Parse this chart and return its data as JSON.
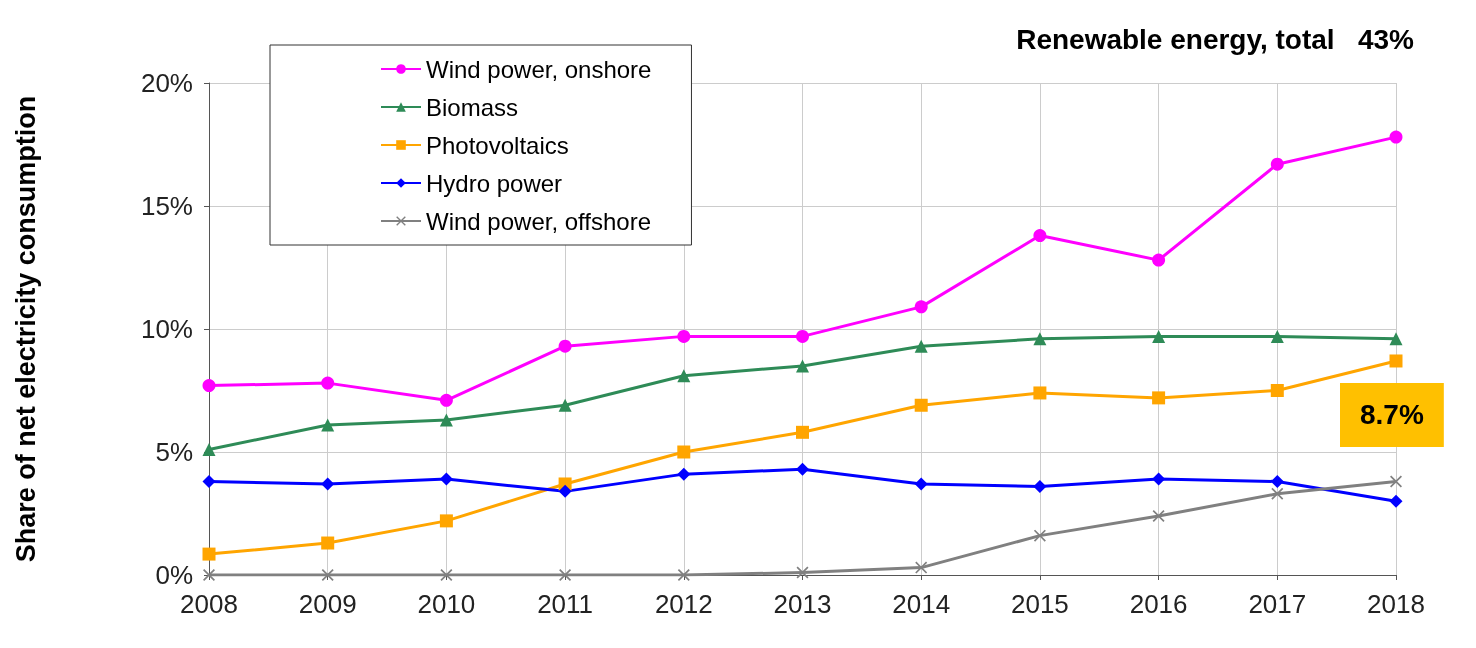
{
  "chart_data": {
    "type": "line",
    "ylabel": "Share of net electricity consumption",
    "categories": [
      "2008",
      "2009",
      "2010",
      "2011",
      "2012",
      "2013",
      "2014",
      "2015",
      "2016",
      "2017",
      "2018"
    ],
    "series": [
      {
        "name": "Wind power, onshore",
        "color": "#ff00ff",
        "marker": "circle",
        "values": [
          7.7,
          7.8,
          7.1,
          9.3,
          9.7,
          9.7,
          10.9,
          13.8,
          12.8,
          16.7,
          17.8
        ]
      },
      {
        "name": "Biomass",
        "color": "#2e8b57",
        "marker": "triangle",
        "values": [
          5.1,
          6.1,
          6.3,
          6.9,
          8.1,
          8.5,
          9.3,
          9.6,
          9.7,
          9.7,
          9.6
        ]
      },
      {
        "name": "Photovoltaics",
        "color": "#ffa500",
        "marker": "square",
        "values": [
          0.85,
          1.3,
          2.2,
          3.7,
          5.0,
          5.8,
          6.9,
          7.4,
          7.2,
          7.5,
          8.7
        ]
      },
      {
        "name": "Hydro power",
        "color": "#0000ff",
        "marker": "diamond",
        "values": [
          3.8,
          3.7,
          3.9,
          3.4,
          4.1,
          4.3,
          3.7,
          3.6,
          3.9,
          3.8,
          3.0
        ]
      },
      {
        "name": "Wind power, offshore",
        "color": "#808080",
        "marker": "cross",
        "values": [
          0,
          0,
          0,
          0,
          0,
          0.1,
          0.3,
          1.6,
          2.4,
          3.3,
          3.8
        ]
      }
    ],
    "ylim": [
      0,
      20
    ],
    "yticks": [
      {
        "value": 0,
        "label": "0%"
      },
      {
        "value": 5,
        "label": "5%"
      },
      {
        "value": 10,
        "label": "10%"
      },
      {
        "value": 15,
        "label": "15%"
      },
      {
        "value": 20,
        "label": "20%"
      }
    ],
    "grid": true,
    "legend": "top left",
    "annotations": [
      "Renewable energy, total   43%",
      {
        "text": "8.7%",
        "x": "2018",
        "y": 8.7
      }
    ]
  }
}
